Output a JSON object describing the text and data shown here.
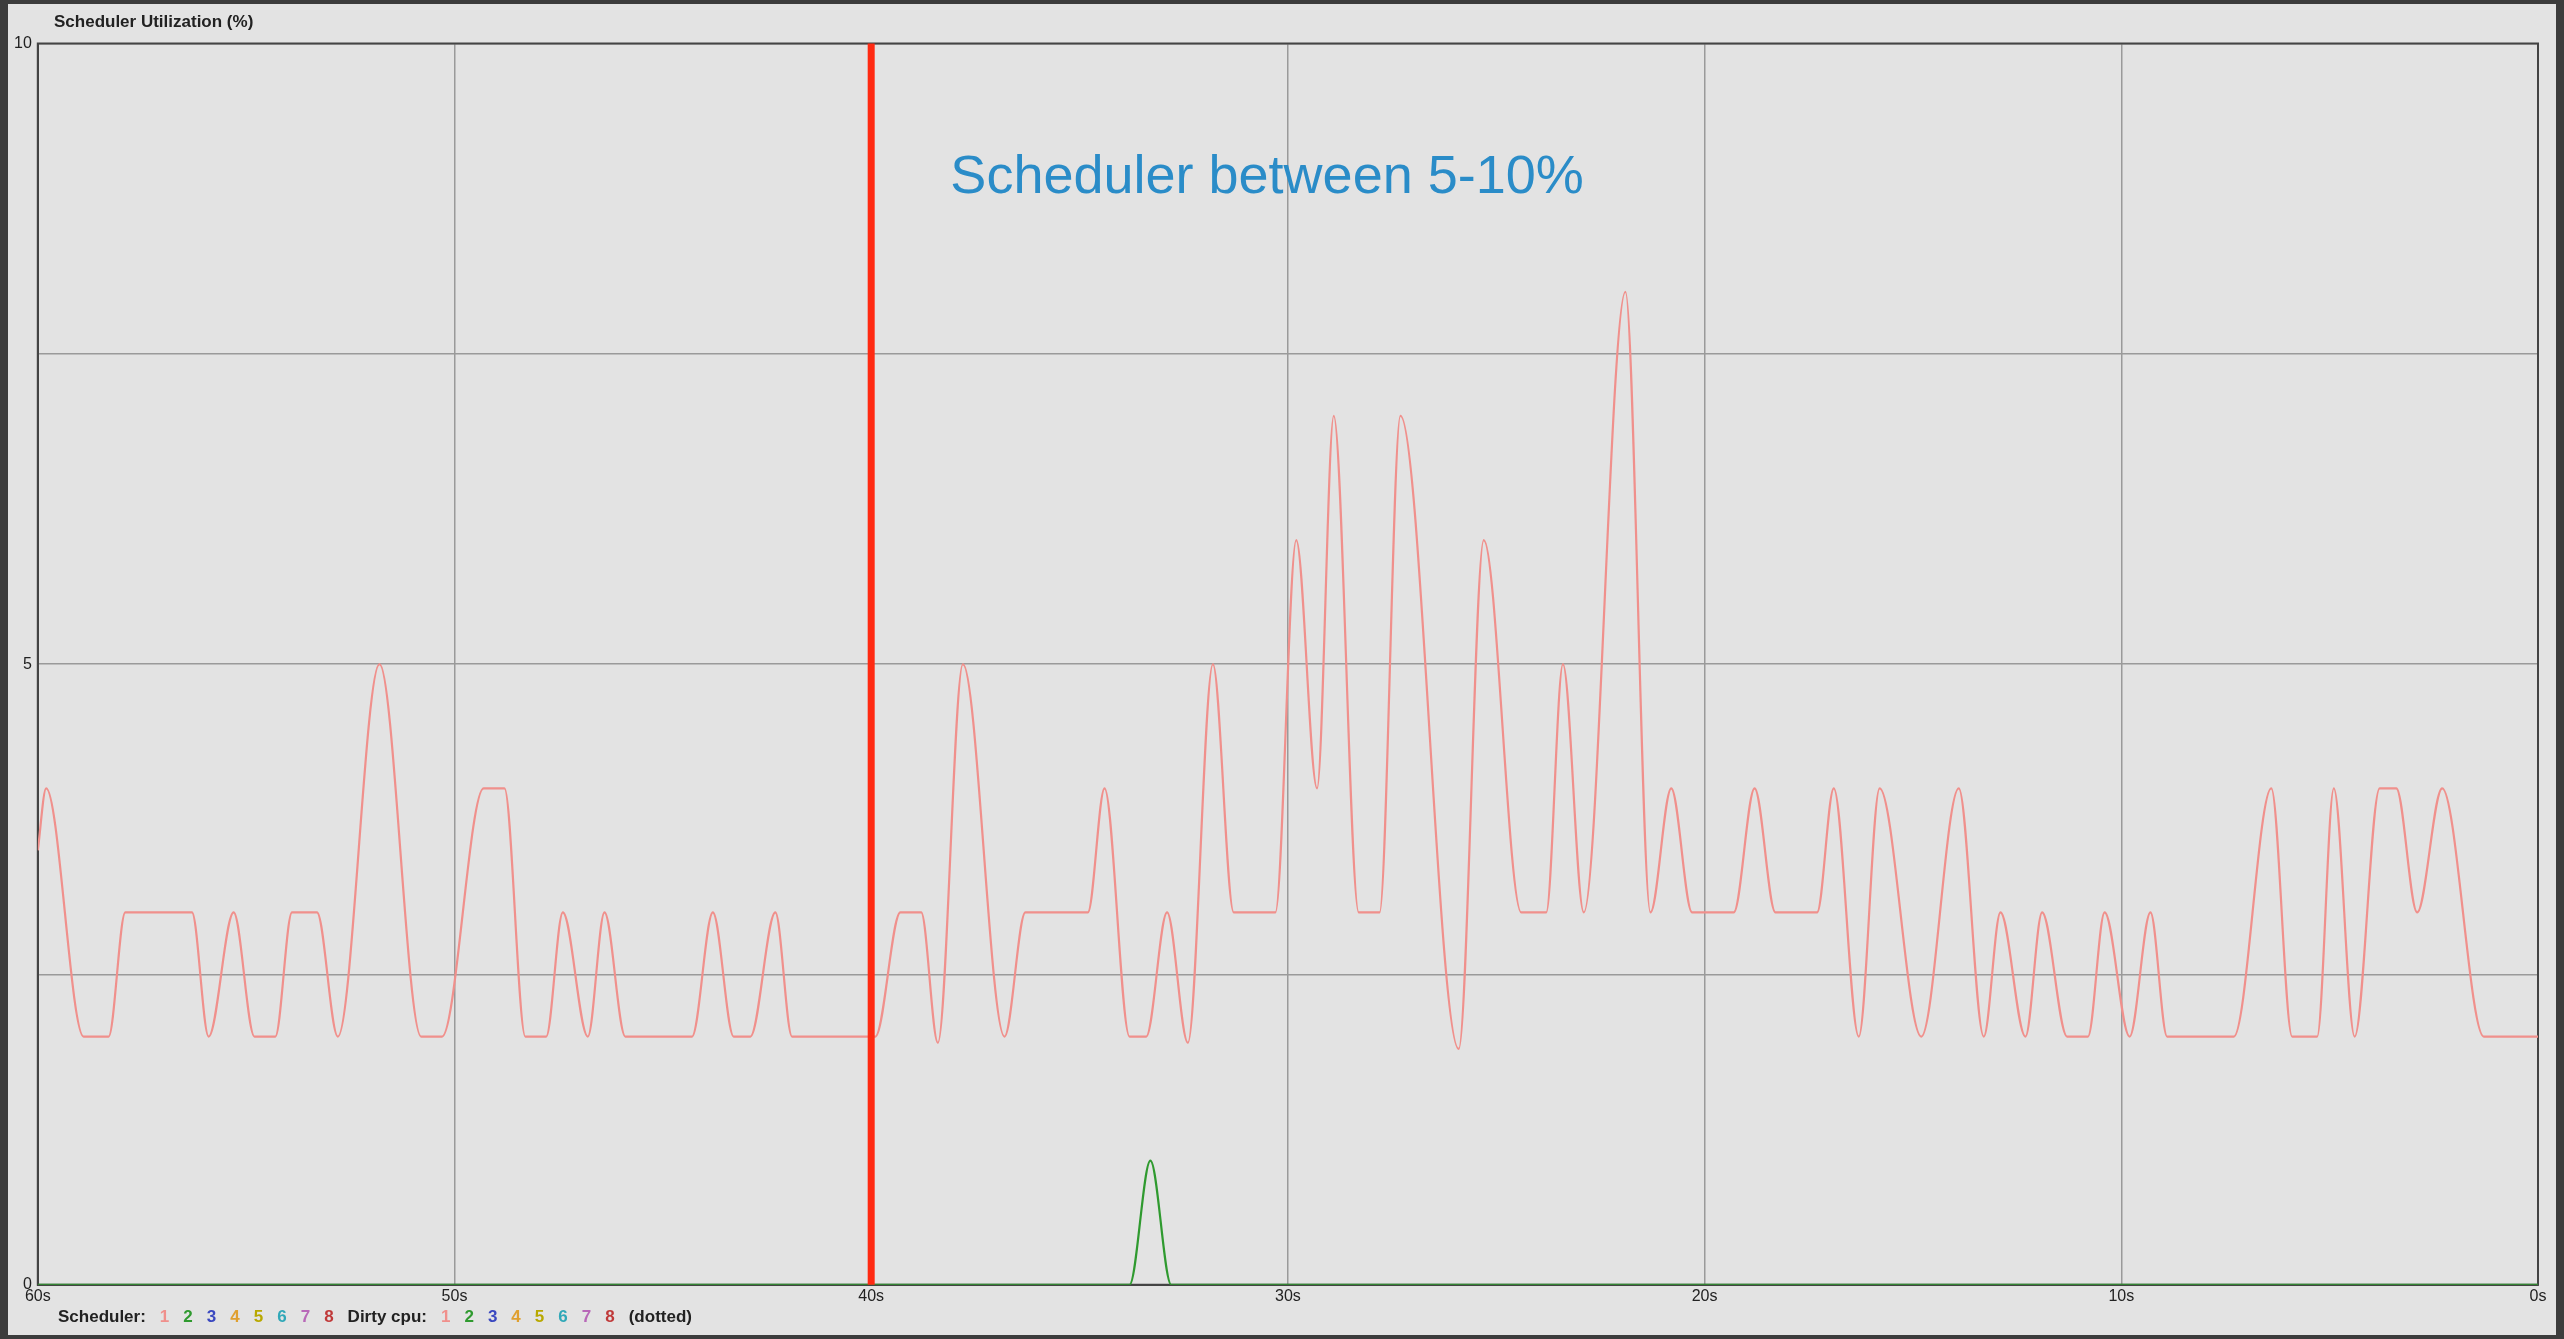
{
  "chart_data": {
    "type": "line",
    "title": "Scheduler Utilization (%)",
    "xlim": [
      60,
      0
    ],
    "xticks": [
      {
        "value": 60,
        "label": "60s"
      },
      {
        "value": 50,
        "label": "50s"
      },
      {
        "value": 40,
        "label": "40s"
      },
      {
        "value": 30,
        "label": "30s"
      },
      {
        "value": 20,
        "label": "20s"
      },
      {
        "value": 10,
        "label": "10s"
      },
      {
        "value": 0,
        "label": "0s"
      }
    ],
    "ylim": [
      0,
      10
    ],
    "yticks": [
      0,
      {
        "value": 2.5,
        "label": null
      },
      5,
      {
        "value": 7.5,
        "label": null
      },
      10
    ],
    "grid": true,
    "marker": "none",
    "legend": "bottom left",
    "legend_title": "Scheduler:",
    "annotations": [
      "Scheduler between 5-10%",
      "Dirty cpu:",
      "(dotted)"
    ],
    "ref_lines": [
      {
        "axis": "x",
        "value": 40,
        "label": null,
        "color": "#ff2a12"
      }
    ],
    "series": [
      {
        "name": "1",
        "color": "#f0908c",
        "x": [
          60,
          59.8,
          58.9,
          58.3,
          57.9,
          56.3,
          55.9,
          55.3,
          54.8,
          54.3,
          53.9,
          53.3,
          52.8,
          51.8,
          50.8,
          50.3,
          49.3,
          48.8,
          48.3,
          47.8,
          47.4,
          46.8,
          46.4,
          45.9,
          44.3,
          43.8,
          43.3,
          42.9,
          42.3,
          41.9,
          39.9,
          39.3,
          38.8,
          38.4,
          37.8,
          36.8,
          36.3,
          34.8,
          34.4,
          33.8,
          33.4,
          32.9,
          32.4,
          31.8,
          31.3,
          30.3,
          29.8,
          29.3,
          28.9,
          28.3,
          27.8,
          27.3,
          25.9,
          25.3,
          24.4,
          23.8,
          23.4,
          22.9,
          21.9,
          21.3,
          20.8,
          20.3,
          19.3,
          18.8,
          18.3,
          17.3,
          16.9,
          16.3,
          15.8,
          14.8,
          13.9,
          13.3,
          12.9,
          12.3,
          11.9,
          11.3,
          10.8,
          10.4,
          9.8,
          9.3,
          8.9,
          7.3,
          6.4,
          5.9,
          5.3,
          4.9,
          4.4,
          3.8,
          3.4,
          2.9,
          2.3,
          1.3,
          0
        ],
        "values": [
          3.5,
          4,
          2,
          2,
          3,
          3,
          2,
          3,
          2,
          2,
          3,
          3,
          2,
          5,
          2,
          2,
          4,
          4,
          2,
          2,
          3,
          2,
          3,
          2,
          2,
          3,
          2,
          2,
          3,
          2,
          2,
          3,
          3,
          1.95,
          5,
          2,
          3,
          3,
          4,
          2,
          2,
          3,
          1.95,
          5,
          3,
          3,
          6,
          4,
          7,
          3,
          3,
          7,
          1.9,
          6,
          3,
          3,
          5,
          3,
          8,
          3,
          4,
          3,
          3,
          4,
          3,
          3,
          4,
          2,
          4,
          2,
          4,
          2,
          3,
          2,
          3,
          2,
          2,
          3,
          2,
          3,
          2,
          2,
          4,
          2,
          2,
          4,
          2,
          4,
          4,
          3,
          4,
          2,
          2
        ]
      },
      {
        "name": "2",
        "color": "#2f9a2f",
        "x": [
          60,
          33.8,
          33.3,
          32.8,
          0
        ],
        "values": [
          0,
          0,
          1,
          0,
          0
        ]
      },
      {
        "name": "3",
        "color": "#3a48c0"
      },
      {
        "name": "4",
        "color": "#e0a030"
      },
      {
        "name": "5",
        "color": "#b8a800"
      },
      {
        "name": "6",
        "color": "#30a8b8"
      },
      {
        "name": "7",
        "color": "#b868b8"
      },
      {
        "name": "8",
        "color": "#c03a3a"
      },
      {
        "name": "1",
        "color": "#f0908c",
        "line_style": "dotted"
      },
      {
        "name": "2",
        "color": "#2f9a2f",
        "line_style": "dotted"
      },
      {
        "name": "3",
        "color": "#3a48c0",
        "line_style": "dotted"
      },
      {
        "name": "4",
        "color": "#e0a030",
        "line_style": "dotted"
      },
      {
        "name": "5",
        "color": "#b8a800",
        "line_style": "dotted"
      },
      {
        "name": "6",
        "color": "#30a8b8",
        "line_style": "dotted"
      },
      {
        "name": "7",
        "color": "#b868b8",
        "line_style": "dotted"
      },
      {
        "name": "8",
        "color": "#c03a3a",
        "line_style": "dotted"
      }
    ]
  }
}
